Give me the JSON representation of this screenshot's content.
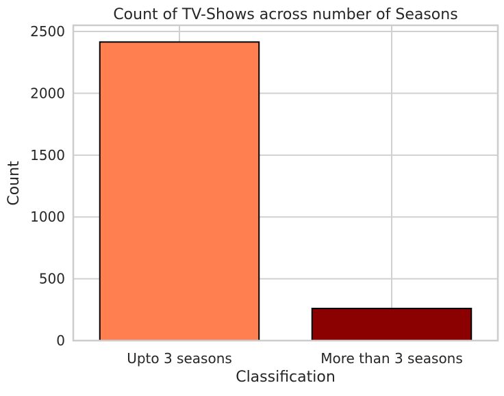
{
  "chart_data": {
    "type": "bar",
    "title": "Count of TV-Shows across number of Seasons",
    "xlabel": "Classification",
    "ylabel": "Count",
    "categories": [
      "Upto 3 seasons",
      "More than 3 seasons"
    ],
    "values": [
      2415,
      260
    ],
    "colors": [
      "#ff7f50",
      "#8b0000"
    ],
    "edge_color": "#000000",
    "ylim": [
      0,
      2550
    ],
    "yticks": [
      0,
      500,
      1000,
      1500,
      2000,
      2500
    ],
    "grid": true,
    "style": "whitegrid"
  }
}
